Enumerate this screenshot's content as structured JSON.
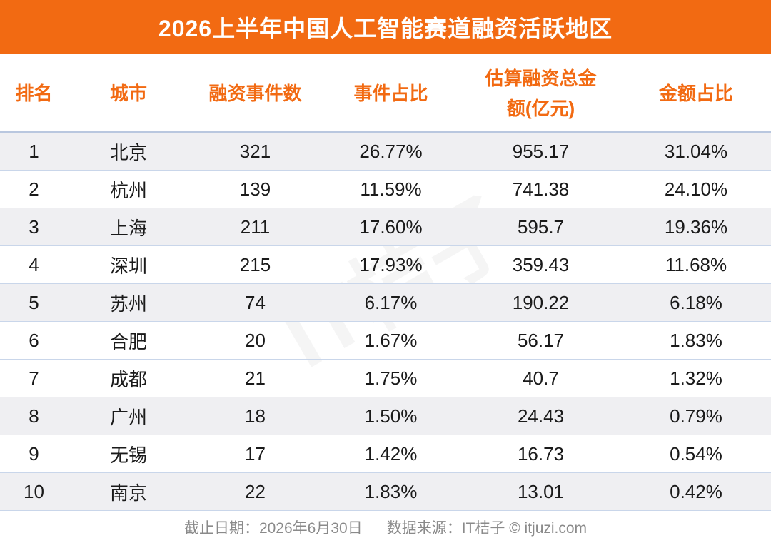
{
  "header": {
    "title": "2026上半年中国人工智能赛道融资活跃地区"
  },
  "table": {
    "columns": [
      "排名",
      "城市",
      "融资事件数",
      "事件占比",
      "估算融资总金额(亿元)",
      "金额占比"
    ],
    "rows": [
      [
        "1",
        "北京",
        "321",
        "26.77%",
        "955.17",
        "31.04%"
      ],
      [
        "2",
        "杭州",
        "139",
        "11.59%",
        "741.38",
        "24.10%"
      ],
      [
        "3",
        "上海",
        "211",
        "17.60%",
        "595.7",
        "19.36%"
      ],
      [
        "4",
        "深圳",
        "215",
        "17.93%",
        "359.43",
        "11.68%"
      ],
      [
        "5",
        "苏州",
        "74",
        "6.17%",
        "190.22",
        "6.18%"
      ],
      [
        "6",
        "合肥",
        "20",
        "1.67%",
        "56.17",
        "1.83%"
      ],
      [
        "7",
        "成都",
        "21",
        "1.75%",
        "40.7",
        "1.32%"
      ],
      [
        "8",
        "广州",
        "18",
        "1.50%",
        "24.43",
        "0.79%"
      ],
      [
        "9",
        "无锡",
        "17",
        "1.42%",
        "16.73",
        "0.54%"
      ],
      [
        "10",
        "南京",
        "22",
        "1.83%",
        "13.01",
        "0.42%"
      ]
    ]
  },
  "watermark": "IT桔子",
  "footer": {
    "date": "截止日期：2026年6月30日",
    "source": "数据来源：IT桔子 © itjuzi.com"
  }
}
